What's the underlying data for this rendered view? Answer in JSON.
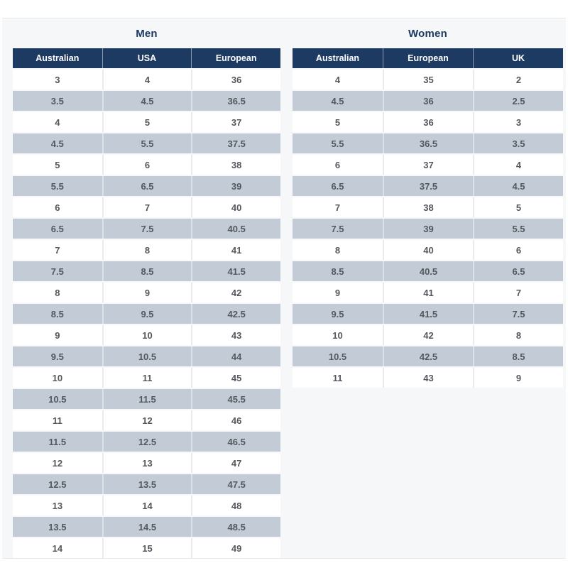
{
  "page": {
    "background": "#ffffff",
    "panel_background": "#f5f7f9"
  },
  "colors": {
    "header_bg": "#1d3a63",
    "header_text": "#ffffff",
    "row_bg": "#ffffff",
    "alt_row_bg": "#c3ccd6",
    "cell_text": "#54585e",
    "title_text": "#1d3a63"
  },
  "tables": [
    {
      "id": "men",
      "title": "Men",
      "columns": [
        "Australian",
        "USA",
        "European"
      ],
      "rows": [
        [
          "3",
          "4",
          "36"
        ],
        [
          "3.5",
          "4.5",
          "36.5"
        ],
        [
          "4",
          "5",
          "37"
        ],
        [
          "4.5",
          "5.5",
          "37.5"
        ],
        [
          "5",
          "6",
          "38"
        ],
        [
          "5.5",
          "6.5",
          "39"
        ],
        [
          "6",
          "7",
          "40"
        ],
        [
          "6.5",
          "7.5",
          "40.5"
        ],
        [
          "7",
          "8",
          "41"
        ],
        [
          "7.5",
          "8.5",
          "41.5"
        ],
        [
          "8",
          "9",
          "42"
        ],
        [
          "8.5",
          "9.5",
          "42.5"
        ],
        [
          "9",
          "10",
          "43"
        ],
        [
          "9.5",
          "10.5",
          "44"
        ],
        [
          "10",
          "11",
          "45"
        ],
        [
          "10.5",
          "11.5",
          "45.5"
        ],
        [
          "11",
          "12",
          "46"
        ],
        [
          "11.5",
          "12.5",
          "46.5"
        ],
        [
          "12",
          "13",
          "47"
        ],
        [
          "12.5",
          "13.5",
          "47.5"
        ],
        [
          "13",
          "14",
          "48"
        ],
        [
          "13.5",
          "14.5",
          "48.5"
        ],
        [
          "14",
          "15",
          "49"
        ]
      ]
    },
    {
      "id": "women",
      "title": "Women",
      "columns": [
        "Australian",
        "European",
        "UK"
      ],
      "rows": [
        [
          "4",
          "35",
          "2"
        ],
        [
          "4.5",
          "36",
          "2.5"
        ],
        [
          "5",
          "36",
          "3"
        ],
        [
          "5.5",
          "36.5",
          "3.5"
        ],
        [
          "6",
          "37",
          "4"
        ],
        [
          "6.5",
          "37.5",
          "4.5"
        ],
        [
          "7",
          "38",
          "5"
        ],
        [
          "7.5",
          "39",
          "5.5"
        ],
        [
          "8",
          "40",
          "6"
        ],
        [
          "8.5",
          "40.5",
          "6.5"
        ],
        [
          "9",
          "41",
          "7"
        ],
        [
          "9.5",
          "41.5",
          "7.5"
        ],
        [
          "10",
          "42",
          "8"
        ],
        [
          "10.5",
          "42.5",
          "8.5"
        ],
        [
          "11",
          "43",
          "9"
        ]
      ]
    }
  ]
}
